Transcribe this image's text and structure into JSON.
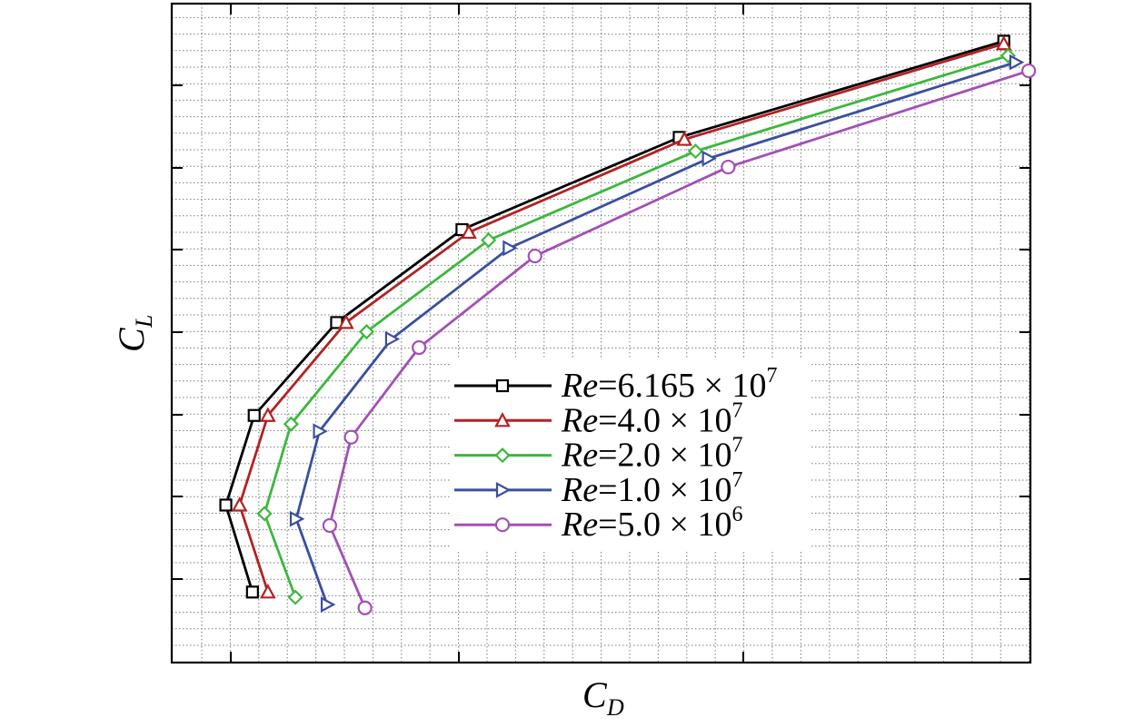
{
  "chart_data": {
    "type": "line",
    "xlabel": "C",
    "xlabel_sub": "D",
    "ylabel": "C",
    "ylabel_sub": "L",
    "xlim": [
      0,
      1
    ],
    "ylim": [
      0,
      1
    ],
    "grid": true,
    "legend_position": "center-right",
    "series": [
      {
        "name": "6.165 × 10",
        "prefix": "Re",
        "exp": "7",
        "color": "#000000",
        "marker": "square",
        "x": [
          0.094,
          0.063,
          0.096,
          0.192,
          0.338,
          0.591,
          0.969
        ],
        "y": [
          0.107,
          0.239,
          0.375,
          0.516,
          0.657,
          0.797,
          0.943
        ]
      },
      {
        "name": "4.0 × 10",
        "prefix": "Re",
        "exp": "7",
        "color": "#b22222",
        "marker": "triangle-up",
        "x": [
          0.112,
          0.079,
          0.112,
          0.203,
          0.346,
          0.597,
          0.969
        ],
        "y": [
          0.107,
          0.239,
          0.375,
          0.516,
          0.653,
          0.794,
          0.939
        ]
      },
      {
        "name": "2.0 × 10",
        "prefix": "Re",
        "exp": "7",
        "color": "#3cb83c",
        "marker": "diamond",
        "x": [
          0.144,
          0.108,
          0.139,
          0.227,
          0.369,
          0.61,
          0.974
        ],
        "y": [
          0.099,
          0.226,
          0.362,
          0.502,
          0.641,
          0.776,
          0.921
        ]
      },
      {
        "name": "1.0 × 10",
        "prefix": "Re",
        "exp": "7",
        "color": "#3a4f9e",
        "marker": "triangle-right",
        "x": [
          0.181,
          0.145,
          0.172,
          0.256,
          0.393,
          0.625,
          0.983
        ],
        "y": [
          0.088,
          0.218,
          0.351,
          0.491,
          0.629,
          0.765,
          0.911
        ]
      },
      {
        "name": "5.0 × 10",
        "prefix": "Re",
        "exp": "6",
        "color": "#a34fb5",
        "marker": "circle",
        "x": [
          0.225,
          0.184,
          0.209,
          0.288,
          0.423,
          0.648,
          0.998
        ],
        "y": [
          0.083,
          0.208,
          0.342,
          0.478,
          0.617,
          0.752,
          0.898
        ]
      }
    ]
  }
}
